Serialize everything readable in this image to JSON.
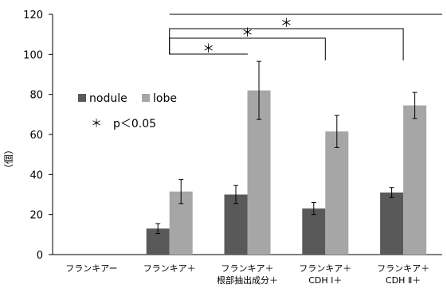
{
  "chart_data": {
    "type": "bar",
    "ylabel": "（個）",
    "ylim": [
      0,
      120
    ],
    "yticks": [
      0,
      20,
      40,
      60,
      80,
      100,
      120
    ],
    "grid": false,
    "legend_position": "upper-left",
    "categories": [
      [
        "フランキアー"
      ],
      [
        "フランキア＋"
      ],
      [
        "フランキア＋",
        "根部抽出成分＋"
      ],
      [
        "フランキア＋",
        "CDH Ⅰ＋"
      ],
      [
        "フランキア＋",
        "CDH Ⅱ＋"
      ]
    ],
    "series": [
      {
        "name": "nodule",
        "color": "#595959",
        "values": [
          0,
          13,
          30,
          23,
          31
        ],
        "errors": [
          0,
          2.5,
          4.5,
          3,
          2.5
        ]
      },
      {
        "name": "lobe",
        "color": "#a6a6a6",
        "values": [
          0,
          31.5,
          82,
          61.5,
          74.5
        ],
        "errors": [
          0,
          6,
          14.5,
          8,
          6.5
        ]
      }
    ],
    "significance": {
      "note": "＊　p＜0.05",
      "marker": "＊",
      "comparisons": [
        {
          "from": 1,
          "to": 2
        },
        {
          "from": 1,
          "to": 3
        },
        {
          "from": 1,
          "to": 4
        }
      ]
    }
  }
}
